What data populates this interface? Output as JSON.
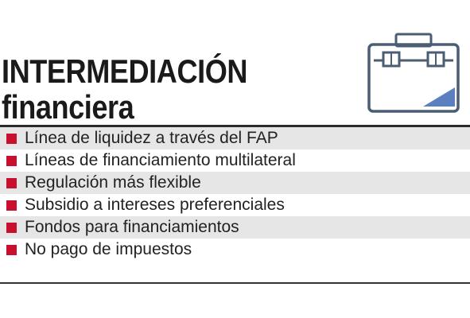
{
  "title": {
    "line1": "INTERMEDIACIÓN",
    "line2": "financiera"
  },
  "icon": "briefcase-icon",
  "colors": {
    "bullet": "#c8102e",
    "icon_stroke": "#4a5d73",
    "icon_accent": "#5b7fbf",
    "row_shade": "#e6e6e6"
  },
  "items": [
    {
      "label": "Línea de liquidez a través del FAP"
    },
    {
      "label": "Líneas de financiamiento multilateral"
    },
    {
      "label": "Regulación más flexible"
    },
    {
      "label": "Subsidio a intereses preferenciales"
    },
    {
      "label": "Fondos para financiamientos"
    },
    {
      "label": "No pago de impuestos"
    }
  ]
}
